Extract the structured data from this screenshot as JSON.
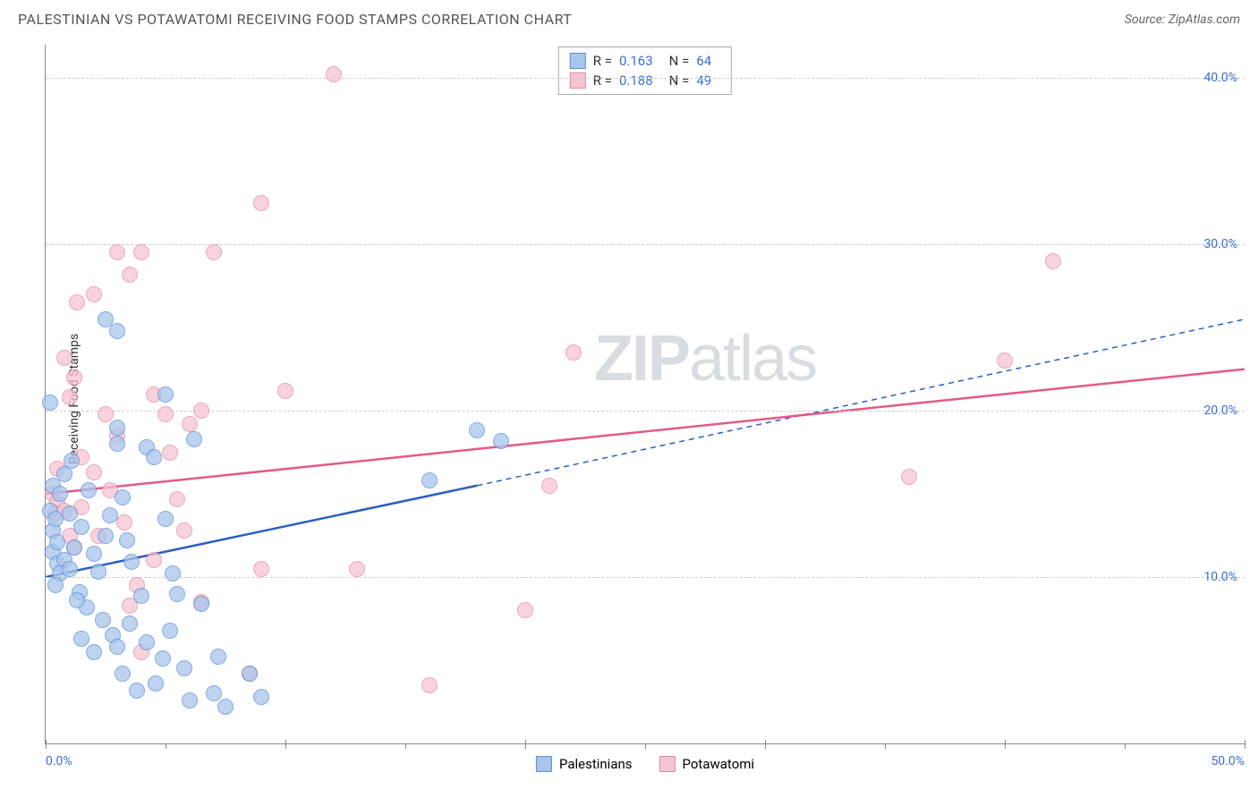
{
  "header": {
    "title": "PALESTINIAN VS POTAWATOMI RECEIVING FOOD STAMPS CORRELATION CHART",
    "source_prefix": "Source: ",
    "source_name": "ZipAtlas.com"
  },
  "ylabel": "Receiving Food Stamps",
  "watermark": {
    "bold": "ZIP",
    "light": "atlas"
  },
  "axes": {
    "xmin": 0,
    "xmax": 50,
    "ymin": 0,
    "ymax": 42,
    "yticks": [
      {
        "v": 10,
        "label": "10.0%"
      },
      {
        "v": 20,
        "label": "20.0%"
      },
      {
        "v": 30,
        "label": "30.0%"
      },
      {
        "v": 40,
        "label": "40.0%"
      }
    ],
    "xticks_major": [
      0,
      10,
      20,
      30,
      40,
      50
    ],
    "xticks_minor": [
      5,
      15,
      25,
      35,
      45
    ],
    "xtick_labels": [
      {
        "v": 0,
        "label": "0.0%",
        "align": "left"
      },
      {
        "v": 50,
        "label": "50.0%",
        "align": "right"
      }
    ],
    "grid_color": "#cccccc",
    "axis_color": "#888888",
    "label_color": "#3b6fd4"
  },
  "series": {
    "palestinians": {
      "label": "Palestinians",
      "fill": "#a9c5ec",
      "stroke": "#5a8fd6",
      "marker_radius": 9,
      "R": "0.163",
      "N": "64",
      "trend": {
        "x1": 0,
        "y1": 10,
        "x2": 18,
        "y2": 15.5,
        "x2_dash": 50,
        "y2_dash": 25.5,
        "color": "#2b5fc0",
        "width": 2.5
      },
      "points": [
        [
          0.2,
          14
        ],
        [
          0.3,
          12.8
        ],
        [
          0.3,
          11.5
        ],
        [
          0.5,
          10.8
        ],
        [
          0.4,
          13.5
        ],
        [
          0.5,
          12.1
        ],
        [
          0.8,
          11
        ],
        [
          0.6,
          10.2
        ],
        [
          0.4,
          9.5
        ],
        [
          1,
          10.5
        ],
        [
          1.2,
          11.8
        ],
        [
          1.5,
          13
        ],
        [
          1.8,
          15.2
        ],
        [
          2,
          11.4
        ],
        [
          1.4,
          9.1
        ],
        [
          1.7,
          8.2
        ],
        [
          2.2,
          10.3
        ],
        [
          2.5,
          12.5
        ],
        [
          2.5,
          25.5
        ],
        [
          3,
          24.8
        ],
        [
          3,
          18
        ],
        [
          3,
          19
        ],
        [
          3.2,
          14.8
        ],
        [
          3.4,
          12.2
        ],
        [
          3.6,
          10.9
        ],
        [
          2.4,
          7.4
        ],
        [
          2.8,
          6.5
        ],
        [
          3,
          5.8
        ],
        [
          3.2,
          4.2
        ],
        [
          3.8,
          3.2
        ],
        [
          4,
          8.9
        ],
        [
          4.2,
          17.8
        ],
        [
          4.5,
          17.2
        ],
        [
          5,
          13.5
        ],
        [
          5.3,
          10.2
        ],
        [
          5.5,
          9
        ],
        [
          5.2,
          6.8
        ],
        [
          4.9,
          5.1
        ],
        [
          5.8,
          4.5
        ],
        [
          6,
          2.6
        ],
        [
          6.2,
          18.3
        ],
        [
          6.5,
          8.4
        ],
        [
          7,
          3
        ],
        [
          7.2,
          5.2
        ],
        [
          7.5,
          2.2
        ],
        [
          8.5,
          4.2
        ],
        [
          9,
          2.8
        ],
        [
          5,
          21
        ],
        [
          18,
          18.8
        ],
        [
          19,
          18.2
        ],
        [
          16,
          15.8
        ],
        [
          0.2,
          20.5
        ],
        [
          0.3,
          15.5
        ],
        [
          0.6,
          15
        ],
        [
          0.8,
          16.2
        ],
        [
          1.1,
          17
        ],
        [
          1,
          13.8
        ],
        [
          1.3,
          8.6
        ],
        [
          2,
          5.5
        ],
        [
          1.5,
          6.3
        ],
        [
          2.7,
          13.7
        ],
        [
          3.5,
          7.2
        ],
        [
          4.2,
          6.1
        ],
        [
          4.6,
          3.6
        ]
      ]
    },
    "potawatomi": {
      "label": "Potawatomi",
      "fill": "#f6c5d2",
      "stroke": "#e78aa5",
      "marker_radius": 9,
      "R": "0.188",
      "N": "49",
      "trend": {
        "x1": 0,
        "y1": 15,
        "x2": 50,
        "y2": 22.5,
        "color": "#e35a86",
        "width": 2.5
      },
      "points": [
        [
          0.3,
          15
        ],
        [
          0.5,
          16.5
        ],
        [
          0.5,
          14.5
        ],
        [
          0.4,
          13.8
        ],
        [
          0.8,
          14
        ],
        [
          1,
          12.5
        ],
        [
          1.2,
          11.8
        ],
        [
          1.5,
          14.2
        ],
        [
          1.5,
          17.2
        ],
        [
          2,
          16.3
        ],
        [
          1,
          20.8
        ],
        [
          1.2,
          22
        ],
        [
          0.8,
          23.2
        ],
        [
          2,
          27
        ],
        [
          2.5,
          19.8
        ],
        [
          3,
          18.5
        ],
        [
          3,
          29.5
        ],
        [
          3.5,
          28.2
        ],
        [
          4,
          29.5
        ],
        [
          4.5,
          21
        ],
        [
          5,
          19.8
        ],
        [
          5.2,
          17.5
        ],
        [
          6,
          19.2
        ],
        [
          6.5,
          20
        ],
        [
          7,
          29.5
        ],
        [
          9,
          32.5
        ],
        [
          12,
          40.2
        ],
        [
          10,
          21.2
        ],
        [
          5.5,
          14.7
        ],
        [
          5.8,
          12.8
        ],
        [
          4.5,
          11
        ],
        [
          3.8,
          9.5
        ],
        [
          3.5,
          8.3
        ],
        [
          4,
          5.5
        ],
        [
          6.5,
          8.5
        ],
        [
          8.5,
          4.2
        ],
        [
          9,
          10.5
        ],
        [
          13,
          10.5
        ],
        [
          16,
          3.5
        ],
        [
          20,
          8
        ],
        [
          22,
          23.5
        ],
        [
          21,
          15.5
        ],
        [
          36,
          16
        ],
        [
          40,
          23
        ],
        [
          42,
          29
        ],
        [
          1.3,
          26.5
        ],
        [
          2.2,
          12.5
        ],
        [
          2.7,
          15.2
        ],
        [
          3.3,
          13.3
        ]
      ]
    }
  },
  "stats_labels": {
    "R": "R =",
    "N": "N ="
  },
  "legend_order": [
    "palestinians",
    "potawatomi"
  ]
}
